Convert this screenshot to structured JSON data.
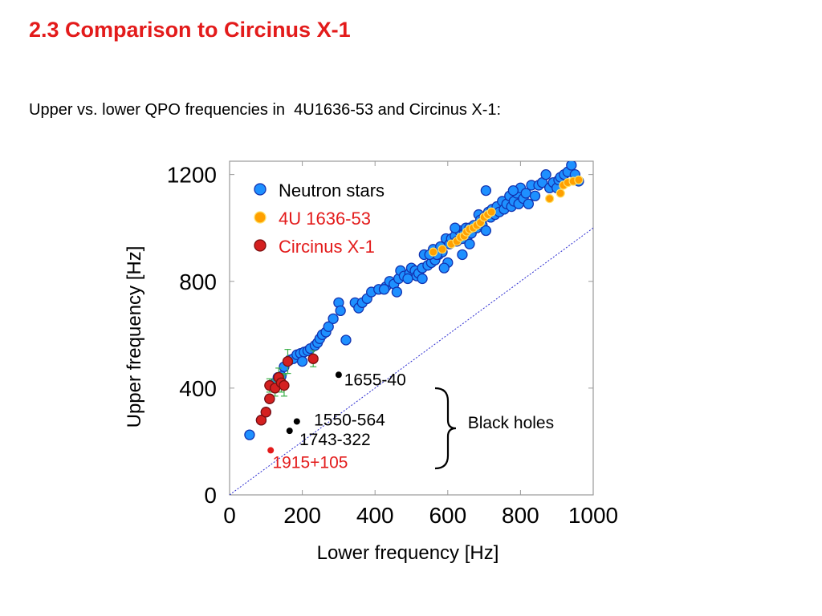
{
  "slide": {
    "title": "2.3 Comparison to Circinus X-1",
    "subtitle": "Upper vs. lower QPO frequencies in  4U1636-53 and Circinus X-1:"
  },
  "colors": {
    "title": "#e31b1b",
    "neutron_fill": "#1e90ff",
    "neutron_edge": "#1233b0",
    "u4_fill": "#ffa000",
    "u4_edge": "#ffe066",
    "cir_fill": "#d42020",
    "cir_edge": "#7a0f0f",
    "error_bar": "#3cb04a",
    "black_hole": "#000000",
    "grs": "#e31b1b",
    "diagonal": "#2b2bd0"
  },
  "chart_data": {
    "type": "scatter",
    "xlabel": "Lower frequency [Hz]",
    "ylabel": "Upper frequency [Hz]",
    "xlim": [
      0,
      1000
    ],
    "ylim": [
      0,
      1250
    ],
    "x_ticks": [
      0,
      200,
      400,
      600,
      800,
      1000
    ],
    "y_ticks": [
      0,
      400,
      800,
      1200
    ],
    "grid": false,
    "legend_position": "top-left",
    "reference_line": {
      "type": "y=x",
      "style": "dotted"
    },
    "legend": [
      {
        "label": "Neutron stars",
        "color": "#1e90ff"
      },
      {
        "label": "4U 1636-53",
        "color": "#ffa000"
      },
      {
        "label": "Circinus X-1",
        "color": "#d42020"
      }
    ],
    "series": [
      {
        "name": "Neutron stars",
        "points": [
          [
            55,
            225
          ],
          [
            87,
            280
          ],
          [
            100,
            310
          ],
          [
            110,
            360
          ],
          [
            125,
            420
          ],
          [
            133,
            440
          ],
          [
            142,
            445
          ],
          [
            150,
            480
          ],
          [
            165,
            505
          ],
          [
            175,
            510
          ],
          [
            185,
            525
          ],
          [
            195,
            530
          ],
          [
            205,
            535
          ],
          [
            215,
            540
          ],
          [
            222,
            548
          ],
          [
            235,
            560
          ],
          [
            242,
            570
          ],
          [
            248,
            585
          ],
          [
            255,
            600
          ],
          [
            265,
            610
          ],
          [
            272,
            630
          ],
          [
            285,
            660
          ],
          [
            300,
            720
          ],
          [
            305,
            690
          ],
          [
            320,
            580
          ],
          [
            345,
            720
          ],
          [
            355,
            700
          ],
          [
            365,
            720
          ],
          [
            378,
            735
          ],
          [
            390,
            760
          ],
          [
            410,
            770
          ],
          [
            430,
            780
          ],
          [
            440,
            800
          ],
          [
            452,
            790
          ],
          [
            465,
            810
          ],
          [
            470,
            840
          ],
          [
            480,
            820
          ],
          [
            495,
            830
          ],
          [
            500,
            850
          ],
          [
            510,
            840
          ],
          [
            515,
            820
          ],
          [
            520,
            830
          ],
          [
            530,
            850
          ],
          [
            535,
            900
          ],
          [
            545,
            860
          ],
          [
            555,
            870
          ],
          [
            560,
            920
          ],
          [
            565,
            880
          ],
          [
            575,
            900
          ],
          [
            580,
            930
          ],
          [
            585,
            910
          ],
          [
            595,
            960
          ],
          [
            605,
            940
          ],
          [
            610,
            960
          ],
          [
            620,
            970
          ],
          [
            625,
            950
          ],
          [
            632,
            990
          ],
          [
            640,
            960
          ],
          [
            645,
            980
          ],
          [
            650,
            1000
          ],
          [
            655,
            970
          ],
          [
            660,
            1000
          ],
          [
            665,
            980
          ],
          [
            672,
            1010
          ],
          [
            680,
            1000
          ],
          [
            685,
            1050
          ],
          [
            690,
            1030
          ],
          [
            695,
            1010
          ],
          [
            700,
            1040
          ],
          [
            705,
            990
          ],
          [
            712,
            1060
          ],
          [
            718,
            1040
          ],
          [
            722,
            1070
          ],
          [
            730,
            1050
          ],
          [
            735,
            1080
          ],
          [
            742,
            1060
          ],
          [
            750,
            1100
          ],
          [
            755,
            1070
          ],
          [
            762,
            1090
          ],
          [
            770,
            1120
          ],
          [
            775,
            1080
          ],
          [
            782,
            1100
          ],
          [
            790,
            1130
          ],
          [
            795,
            1090
          ],
          [
            800,
            1150
          ],
          [
            808,
            1110
          ],
          [
            815,
            1130
          ],
          [
            822,
            1090
          ],
          [
            830,
            1160
          ],
          [
            840,
            1120
          ],
          [
            850,
            1160
          ],
          [
            860,
            1170
          ],
          [
            870,
            1200
          ],
          [
            880,
            1150
          ],
          [
            890,
            1170
          ],
          [
            900,
            1150
          ],
          [
            905,
            1180
          ],
          [
            910,
            1190
          ],
          [
            920,
            1200
          ],
          [
            930,
            1210
          ],
          [
            940,
            1235
          ],
          [
            950,
            1200
          ],
          [
            960,
            1175
          ],
          [
            780,
            1140
          ],
          [
            705,
            1140
          ],
          [
            660,
            940
          ],
          [
            640,
            900
          ],
          [
            620,
            1000
          ],
          [
            600,
            870
          ],
          [
            590,
            850
          ],
          [
            570,
            900
          ],
          [
            550,
            900
          ],
          [
            530,
            810
          ],
          [
            490,
            810
          ],
          [
            460,
            760
          ],
          [
            425,
            770
          ],
          [
            200,
            500
          ]
        ]
      },
      {
        "name": "4U 1636-53",
        "points": [
          [
            560,
            910
          ],
          [
            585,
            920
          ],
          [
            610,
            940
          ],
          [
            625,
            950
          ],
          [
            635,
            965
          ],
          [
            645,
            970
          ],
          [
            652,
            985
          ],
          [
            660,
            995
          ],
          [
            670,
            1000
          ],
          [
            680,
            1010
          ],
          [
            690,
            1020
          ],
          [
            700,
            1040
          ],
          [
            710,
            1050
          ],
          [
            720,
            1060
          ],
          [
            880,
            1110
          ],
          [
            910,
            1130
          ],
          [
            918,
            1160
          ],
          [
            930,
            1170
          ],
          [
            945,
            1175
          ],
          [
            960,
            1180
          ]
        ]
      },
      {
        "name": "Circinus X-1",
        "points": [
          [
            87,
            280
          ],
          [
            100,
            310
          ],
          [
            110,
            360
          ],
          [
            110,
            410
          ],
          [
            125,
            400
          ],
          [
            135,
            440
          ],
          [
            142,
            420
          ],
          [
            150,
            410
          ],
          [
            160,
            500
          ],
          [
            230,
            510
          ]
        ],
        "yerr": [
          5,
          10,
          15,
          25,
          30,
          35,
          35,
          40,
          45,
          30
        ]
      },
      {
        "name": "Black holes",
        "points": [
          [
            300,
            450
          ],
          [
            185,
            275
          ],
          [
            165,
            240
          ]
        ]
      },
      {
        "name": "1915+105",
        "points": [
          [
            113,
            167
          ]
        ]
      }
    ],
    "annotations": [
      {
        "text": "1655-40",
        "x": 315,
        "y": 410
      },
      {
        "text": "1550-564",
        "x": 232,
        "y": 260
      },
      {
        "text": "1743-322",
        "x": 192,
        "y": 187
      },
      {
        "text": "1915+105",
        "x": 118,
        "y": 100
      },
      {
        "text": "Black holes",
        "x": 655,
        "y": 250
      }
    ]
  }
}
